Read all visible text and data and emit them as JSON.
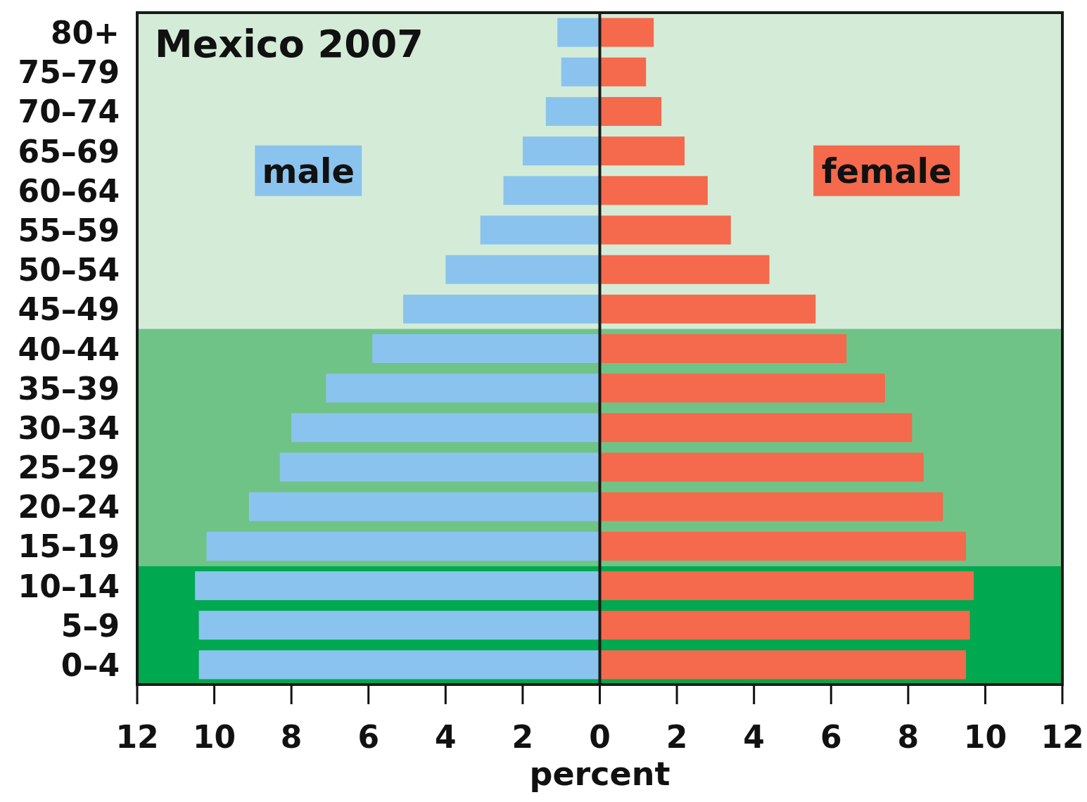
{
  "chart_data": {
    "type": "bar",
    "orientation": "horizontal",
    "title": "Mexico 2007",
    "xlabel": "percent",
    "categories": [
      "80+",
      "75–79",
      "70–74",
      "65–69",
      "60–64",
      "55–59",
      "50–54",
      "45–49",
      "40–44",
      "35–39",
      "30–34",
      "25–29",
      "20–24",
      "15–19",
      "10–14",
      "5–9",
      "0–4"
    ],
    "series": [
      {
        "name": "male",
        "color": "#8ac4ee",
        "values": [
          -1.1,
          -1.0,
          -1.4,
          -2.0,
          -2.5,
          -3.1,
          -4.0,
          -5.1,
          -5.9,
          -7.1,
          -8.0,
          -8.3,
          -9.1,
          -10.2,
          -10.5,
          -10.4,
          -10.4
        ]
      },
      {
        "name": "female",
        "color": "#f5694c",
        "values": [
          1.4,
          1.2,
          1.6,
          2.2,
          2.8,
          3.4,
          4.4,
          5.6,
          6.4,
          7.4,
          8.1,
          8.4,
          8.9,
          9.5,
          9.7,
          9.6,
          9.5
        ]
      }
    ],
    "xlim": [
      -12,
      12
    ],
    "xticks": [
      {
        "value": -12,
        "label": "12"
      },
      {
        "value": -10,
        "label": "10"
      },
      {
        "value": -8,
        "label": "8"
      },
      {
        "value": -6,
        "label": "6"
      },
      {
        "value": -4,
        "label": "4"
      },
      {
        "value": -2,
        "label": "2"
      },
      0,
      2,
      4,
      6,
      8,
      10,
      12
    ],
    "bands": [
      {
        "axis": "y",
        "from": "80+",
        "to": "45–49",
        "color": "#d4ecd7"
      },
      {
        "axis": "y",
        "from": "40–44",
        "to": "15–19",
        "color": "#70c387"
      },
      {
        "axis": "y",
        "from": "10–14",
        "to": "0–4",
        "color": "#00a84f"
      }
    ],
    "ref_lines": [
      {
        "axis": "x",
        "value": 0,
        "color": "#1a1a1a"
      }
    ],
    "stacked": true,
    "grid": false
  }
}
